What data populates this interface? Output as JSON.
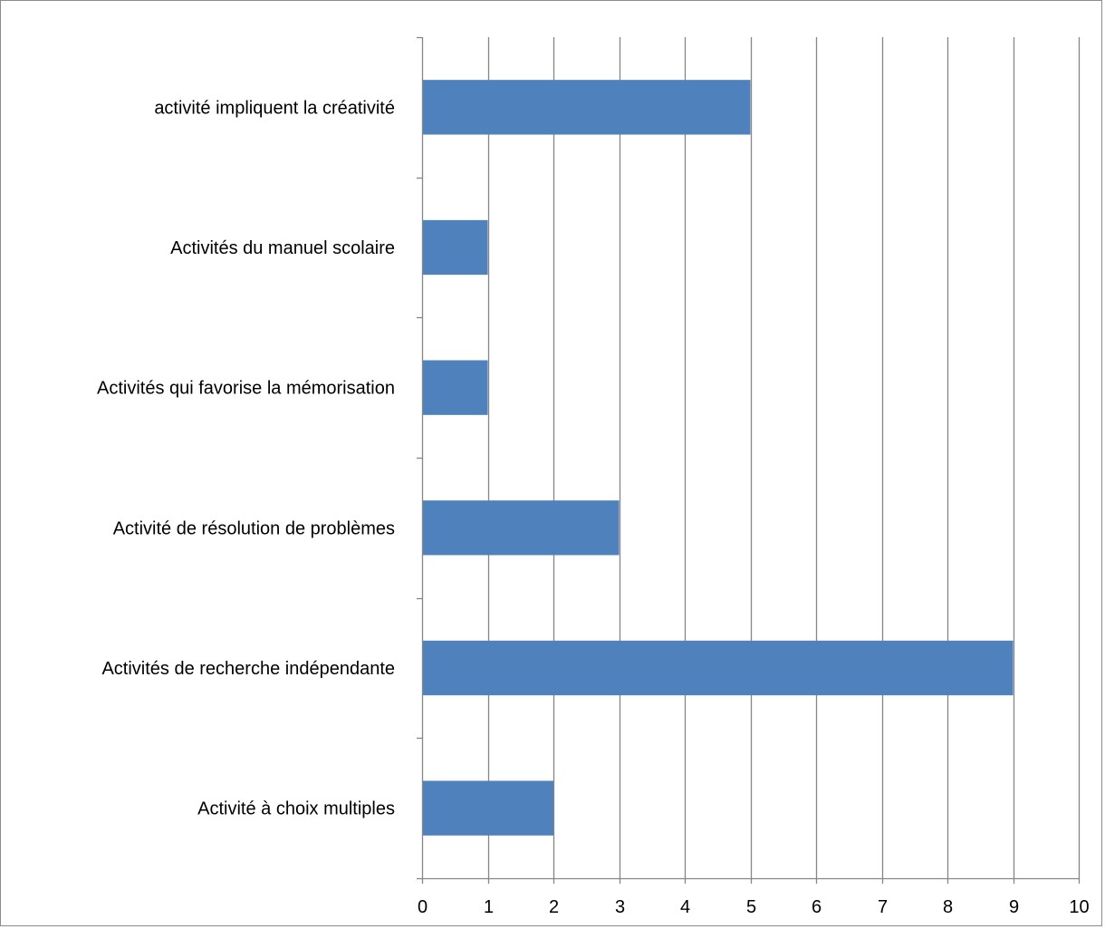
{
  "chart_data": {
    "type": "bar",
    "orientation": "horizontal",
    "title": "",
    "xlabel": "",
    "ylabel": "",
    "categories": [
      "activité impliquent la créativité",
      "Activités du manuel scolaire",
      "Activités qui favorise la mémorisation",
      "Activité de résolution de problèmes",
      "Activités de recherche indépendante",
      "Activité à choix multiples"
    ],
    "values": [
      5,
      1,
      1,
      3,
      9,
      2
    ],
    "xlim": [
      0,
      10
    ],
    "xticks": [
      "0",
      "1",
      "2",
      "3",
      "4",
      "5",
      "6",
      "7",
      "8",
      "9",
      "10"
    ],
    "grid": "vertical major gridlines",
    "legend": "none",
    "bar_color": "#4f81bd",
    "grid_color": "#868686"
  }
}
